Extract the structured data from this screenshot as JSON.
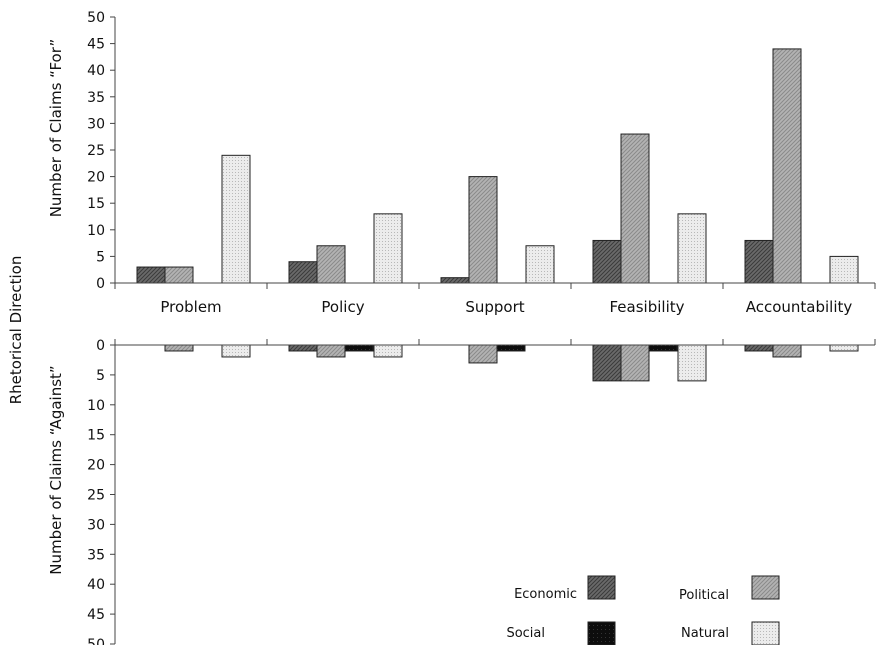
{
  "chart_data": {
    "type": "bar",
    "figure_title": "Rhetorical Direction",
    "categories": [
      "Problem",
      "Policy",
      "Support",
      "Feasibility",
      "Accountability"
    ],
    "panels": [
      {
        "ylabel": "Number of Claims “For”",
        "ylim": [
          0,
          50
        ],
        "yticks": [
          0,
          5,
          10,
          15,
          20,
          25,
          30,
          35,
          40,
          45,
          50
        ],
        "direction": "up",
        "series": [
          {
            "name": "Economic",
            "values": [
              3,
              4,
              1,
              8,
              8
            ]
          },
          {
            "name": "Political",
            "values": [
              3,
              7,
              20,
              28,
              44
            ]
          },
          {
            "name": "Social",
            "values": [
              0,
              0,
              0,
              0,
              0
            ]
          },
          {
            "name": "Natural",
            "values": [
              24,
              13,
              7,
              13,
              5
            ]
          }
        ]
      },
      {
        "ylabel": "Number of Claims “Against”",
        "ylim": [
          0,
          50
        ],
        "yticks": [
          0,
          5,
          10,
          15,
          20,
          25,
          30,
          35,
          40,
          45,
          50
        ],
        "direction": "down",
        "series": [
          {
            "name": "Economic",
            "values": [
              0,
              1,
              0,
              6,
              1
            ]
          },
          {
            "name": "Political",
            "values": [
              1,
              2,
              3,
              6,
              2
            ]
          },
          {
            "name": "Social",
            "values": [
              0,
              1,
              1,
              1,
              0
            ]
          },
          {
            "name": "Natural",
            "values": [
              2,
              2,
              0,
              6,
              1
            ]
          }
        ]
      }
    ],
    "legend": {
      "position": "bottom-right",
      "items": [
        {
          "name": "Economic",
          "pattern": "economic"
        },
        {
          "name": "Political",
          "pattern": "political"
        },
        {
          "name": "Social",
          "pattern": "social"
        },
        {
          "name": "Natural",
          "pattern": "natural"
        }
      ]
    },
    "grid": false
  }
}
